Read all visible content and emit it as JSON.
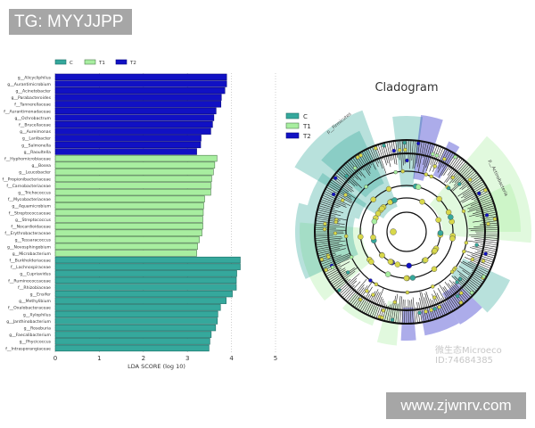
{
  "overlay": {
    "tag": "TG: MYYJJPP",
    "site": "www.zjwnrv.com"
  },
  "watermark": {
    "name": "微生态Microeco",
    "id": "ID:74684385"
  },
  "colors": {
    "C": "#35a89c",
    "T1": "#a8eea0",
    "T2": "#1111c4"
  },
  "chart_data": [
    {
      "type": "bar",
      "orientation": "horizontal",
      "xlabel": "LDA SCORE (log 10)",
      "xlim": [
        0,
        5
      ],
      "xticks": [
        "0",
        "1",
        "2",
        "3",
        "4",
        "5"
      ],
      "grid": true,
      "legend": {
        "placement": "top",
        "entries": [
          "C",
          "T1",
          "T2"
        ]
      },
      "bars": [
        {
          "label": "g__Alicycliphilus",
          "group": "T2",
          "value": 3.89
        },
        {
          "label": "g__Aurantimicrobium",
          "group": "T2",
          "value": 3.89
        },
        {
          "label": "g__Acinetobacter",
          "group": "T2",
          "value": 3.85
        },
        {
          "label": "g__Parabacteroides",
          "group": "T2",
          "value": 3.77
        },
        {
          "label": "f__Tannerellaceae",
          "group": "T2",
          "value": 3.76
        },
        {
          "label": "f__Aurantimonadaceae",
          "group": "T2",
          "value": 3.65
        },
        {
          "label": "g__Ochrobactrum",
          "group": "T2",
          "value": 3.6
        },
        {
          "label": "f__Brucellaceae",
          "group": "T2",
          "value": 3.57
        },
        {
          "label": "g__Aureimonas",
          "group": "T2",
          "value": 3.53
        },
        {
          "label": "g__Lariibacter",
          "group": "T2",
          "value": 3.31
        },
        {
          "label": "g__Salmonella",
          "group": "T2",
          "value": 3.3
        },
        {
          "label": "g__Raoultella",
          "group": "T2",
          "value": 3.21
        },
        {
          "label": "f__Hyphomicrobiaceae",
          "group": "T1",
          "value": 3.67
        },
        {
          "label": "g__Bosea",
          "group": "T1",
          "value": 3.62
        },
        {
          "label": "g__Leucobacter",
          "group": "T1",
          "value": 3.59
        },
        {
          "label": "f__Propionibacteriaceae",
          "group": "T1",
          "value": 3.55
        },
        {
          "label": "f__Carnobacteriaceae",
          "group": "T1",
          "value": 3.54
        },
        {
          "label": "g__Trichococcus",
          "group": "T1",
          "value": 3.53
        },
        {
          "label": "f__Mycobacteriaceae",
          "group": "T1",
          "value": 3.39
        },
        {
          "label": "g__Aquamicrobium",
          "group": "T1",
          "value": 3.37
        },
        {
          "label": "f__Streptococcaceae",
          "group": "T1",
          "value": 3.36
        },
        {
          "label": "g__Streptococcus",
          "group": "T1",
          "value": 3.35
        },
        {
          "label": "f__Nocardioidaceae",
          "group": "T1",
          "value": 3.35
        },
        {
          "label": "f__Erythrobacteraceae",
          "group": "T1",
          "value": 3.33
        },
        {
          "label": "g__Tessaracoccus",
          "group": "T1",
          "value": 3.27
        },
        {
          "label": "g__Novosphingobium",
          "group": "T1",
          "value": 3.23
        },
        {
          "label": "g__Microbacterium",
          "group": "T1",
          "value": 3.21
        },
        {
          "label": "f__Burkholderiaceae",
          "group": "C",
          "value": 4.2
        },
        {
          "label": "f__Lachnospiraceae",
          "group": "C",
          "value": 4.2
        },
        {
          "label": "g__Cupriavidus",
          "group": "C",
          "value": 4.12
        },
        {
          "label": "f__Ruminococcaceae",
          "group": "C",
          "value": 4.11
        },
        {
          "label": "f__Rhizobiaceae",
          "group": "C",
          "value": 4.11
        },
        {
          "label": "g__Ensifer",
          "group": "C",
          "value": 4.02
        },
        {
          "label": "g__Methylibium",
          "group": "C",
          "value": 3.88
        },
        {
          "label": "f__Oxalobacteraceae",
          "group": "C",
          "value": 3.75
        },
        {
          "label": "g__Xylophilus",
          "group": "C",
          "value": 3.69
        },
        {
          "label": "g__Janthinobacterium",
          "group": "C",
          "value": 3.68
        },
        {
          "label": "g__Roseburia",
          "group": "C",
          "value": 3.64
        },
        {
          "label": "g__Faecalibacterium",
          "group": "C",
          "value": 3.54
        },
        {
          "label": "g__Phycicoccus",
          "group": "C",
          "value": 3.51
        },
        {
          "label": "f__Intrasporangiaceae",
          "group": "C",
          "value": 3.49
        }
      ]
    },
    {
      "type": "cladogram",
      "title": "Cladogram",
      "legend": {
        "placement": "top-left",
        "entries": [
          "C",
          "T1",
          "T2"
        ]
      },
      "clade_labels": [
        {
          "label": "p__Firmicutes",
          "group": "C"
        },
        {
          "label": "p__Actinobacteria",
          "group": "T1"
        }
      ]
    }
  ]
}
